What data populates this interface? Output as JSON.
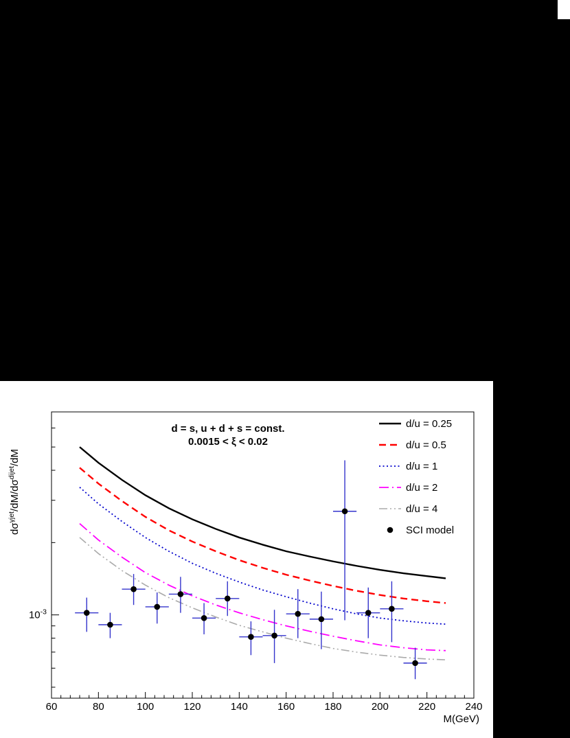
{
  "page": {
    "background_color": "#000000",
    "canvas_color": "#ffffff"
  },
  "chart_data": {
    "type": "line",
    "yscale": "log",
    "xlim": [
      60,
      240
    ],
    "ylim": [
      0.00045,
      0.007
    ],
    "xlabel": "M(GeV)",
    "ylabel_parts": [
      {
        "t": "dσ"
      },
      {
        "t": "γjet",
        "sup": true
      },
      {
        "t": "/dM/dσ"
      },
      {
        "t": "dijet",
        "sup": true
      },
      {
        "t": "/dM"
      }
    ],
    "annotation_lines": [
      "d = s, u + d + s = const.",
      "0.0015 < ξ < 0.02"
    ],
    "x_major_ticks": [
      60,
      80,
      100,
      120,
      140,
      160,
      180,
      200,
      220,
      240
    ],
    "x_minor_step": 4,
    "y_major_tick": {
      "value": 0.001,
      "label_parts": [
        {
          "t": "10"
        },
        {
          "t": "-3",
          "sup": true
        }
      ]
    },
    "y_minor_ticks": [
      0.0005,
      0.0006,
      0.0007,
      0.0008,
      0.0009,
      0.002,
      0.003,
      0.004,
      0.005,
      0.006
    ],
    "grid": false,
    "legend_position": "top-right",
    "x_samples": [
      72,
      80,
      90,
      100,
      110,
      120,
      130,
      140,
      150,
      160,
      170,
      180,
      190,
      200,
      210,
      220,
      228
    ],
    "series": [
      {
        "name": "d/u = 0.25",
        "color": "#000000",
        "dash": "",
        "width": 2.4,
        "values": [
          0.005,
          0.0043,
          0.00365,
          0.00315,
          0.00278,
          0.0025,
          0.00228,
          0.0021,
          0.00196,
          0.00184,
          0.00175,
          0.00167,
          0.0016,
          0.00154,
          0.00149,
          0.00145,
          0.00142
        ]
      },
      {
        "name": "d/u = 0.5",
        "color": "#ff0000",
        "dash": "10,6",
        "width": 2.4,
        "values": [
          0.0041,
          0.00352,
          0.00298,
          0.00256,
          0.00225,
          0.00202,
          0.00184,
          0.00169,
          0.00157,
          0.00147,
          0.00139,
          0.00132,
          0.00126,
          0.00121,
          0.00117,
          0.00114,
          0.00112
        ]
      },
      {
        "name": "d/u = 1",
        "color": "#0000cc",
        "dash": "2,3.5",
        "width": 1.8,
        "values": [
          0.0034,
          0.0029,
          0.00245,
          0.0021,
          0.00184,
          0.00164,
          0.00149,
          0.00137,
          0.00127,
          0.00119,
          0.00112,
          0.00106,
          0.00101,
          0.00097,
          0.000945,
          0.000925,
          0.000915
        ]
      },
      {
        "name": "d/u = 2",
        "color": "#ff00ff",
        "dash": "14,5,2,5",
        "width": 1.8,
        "values": [
          0.0024,
          0.00205,
          0.00174,
          0.0015,
          0.00133,
          0.0012,
          0.0011,
          0.00102,
          0.000955,
          0.0009,
          0.000855,
          0.000815,
          0.00078,
          0.00075,
          0.00073,
          0.000715,
          0.00071
        ]
      },
      {
        "name": "d/u = 4",
        "color": "#aaaaaa",
        "dash": "12,4,2,4,2,4",
        "width": 1.6,
        "values": [
          0.0021,
          0.0018,
          0.00153,
          0.00133,
          0.00118,
          0.00107,
          0.00098,
          0.000905,
          0.00085,
          0.0008,
          0.00076,
          0.000725,
          0.0007,
          0.00068,
          0.000665,
          0.000655,
          0.00065
        ]
      }
    ],
    "scatter": {
      "name": "SCI model",
      "marker_color": "#000000",
      "error_color": "#3333cc",
      "xerr": 5,
      "points": [
        {
          "x": 75,
          "y": 0.00102,
          "lo": 0.00085,
          "hi": 0.00118
        },
        {
          "x": 85,
          "y": 0.00091,
          "lo": 0.0008,
          "hi": 0.00102
        },
        {
          "x": 95,
          "y": 0.00128,
          "lo": 0.0011,
          "hi": 0.00148
        },
        {
          "x": 105,
          "y": 0.00108,
          "lo": 0.00092,
          "hi": 0.00124
        },
        {
          "x": 115,
          "y": 0.00122,
          "lo": 0.00102,
          "hi": 0.00144
        },
        {
          "x": 125,
          "y": 0.00097,
          "lo": 0.00083,
          "hi": 0.00112
        },
        {
          "x": 135,
          "y": 0.00117,
          "lo": 0.00099,
          "hi": 0.00138
        },
        {
          "x": 145,
          "y": 0.00081,
          "lo": 0.00068,
          "hi": 0.00094
        },
        {
          "x": 155,
          "y": 0.00082,
          "lo": 0.00063,
          "hi": 0.00105
        },
        {
          "x": 165,
          "y": 0.00101,
          "lo": 0.0008,
          "hi": 0.00128
        },
        {
          "x": 175,
          "y": 0.00096,
          "lo": 0.00072,
          "hi": 0.00125
        },
        {
          "x": 185,
          "y": 0.0027,
          "lo": 0.00095,
          "hi": 0.0044
        },
        {
          "x": 195,
          "y": 0.00102,
          "lo": 0.0008,
          "hi": 0.0013
        },
        {
          "x": 205,
          "y": 0.00106,
          "lo": 0.00077,
          "hi": 0.00138
        },
        {
          "x": 215,
          "y": 0.00063,
          "lo": 0.00054,
          "hi": 0.00073
        }
      ]
    }
  }
}
